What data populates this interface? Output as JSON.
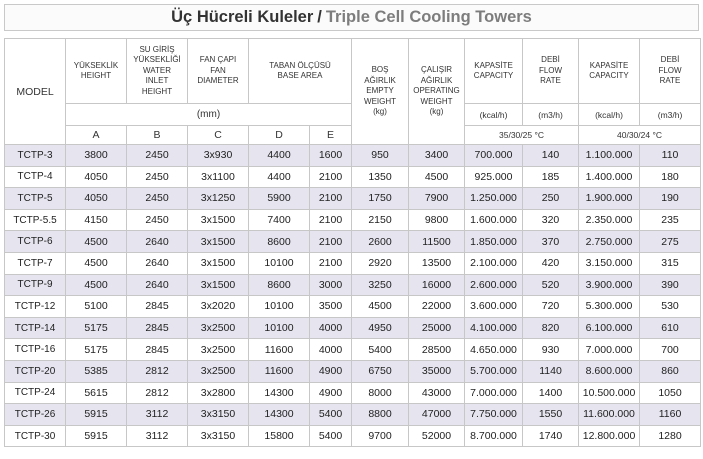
{
  "title": {
    "turkish": "Üç Hücreli Kuleler",
    "separator": "/",
    "english": "Triple Cell Cooling Towers"
  },
  "table": {
    "model_header": "MODEL",
    "col_height": [
      "YÜKSEKLİK",
      "HEIGHT"
    ],
    "col_inlet": [
      "SU GİRİŞ",
      "YÜKSEKLİĞİ",
      "WATER",
      "INLET",
      "HEIGHT"
    ],
    "col_fan": [
      "FAN ÇAPI",
      "FAN",
      "DIAMETER"
    ],
    "col_base": [
      "TABAN ÖLÇÜSÜ",
      "BASE AREA"
    ],
    "col_empty": [
      "BOŞ",
      "AĞIRLIK",
      "EMPTY",
      "WEIGHT",
      "(kg)"
    ],
    "col_operating": [
      "ÇALIŞIR",
      "AĞIRLIK",
      "OPERATING",
      "WEIGHT",
      "(kg)"
    ],
    "col_capacity1": [
      "KAPASİTE",
      "CAPACITY"
    ],
    "col_flow1": [
      "DEBİ",
      "FLOW",
      "RATE"
    ],
    "col_capacity2": [
      "KAPASİTE",
      "CAPACITY"
    ],
    "col_flow2": [
      "DEBİ",
      "FLOW",
      "RATE"
    ],
    "unit_mm": "(mm)",
    "unit_kcal": "(kcal/h)",
    "unit_m3h": "(m3/h)",
    "letters": [
      "A",
      "B",
      "C",
      "D",
      "E"
    ],
    "condition1": "35/30/25 °C",
    "condition2": "40/30/24 °C",
    "rows": [
      [
        "TCTP-3",
        "3800",
        "2450",
        "3x930",
        "4400",
        "1600",
        "950",
        "3400",
        "700.000",
        "140",
        "1.100.000",
        "110"
      ],
      [
        "TCTP-4",
        "4050",
        "2450",
        "3x1100",
        "4400",
        "2100",
        "1350",
        "4500",
        "925.000",
        "185",
        "1.400.000",
        "180"
      ],
      [
        "TCTP-5",
        "4050",
        "2450",
        "3x1250",
        "5900",
        "2100",
        "1750",
        "7900",
        "1.250.000",
        "250",
        "1.900.000",
        "190"
      ],
      [
        "TCTP-5.5",
        "4150",
        "2450",
        "3x1500",
        "7400",
        "2100",
        "2150",
        "9800",
        "1.600.000",
        "320",
        "2.350.000",
        "235"
      ],
      [
        "TCTP-6",
        "4500",
        "2640",
        "3x1500",
        "8600",
        "2100",
        "2600",
        "11500",
        "1.850.000",
        "370",
        "2.750.000",
        "275"
      ],
      [
        "TCTP-7",
        "4500",
        "2640",
        "3x1500",
        "10100",
        "2100",
        "2920",
        "13500",
        "2.100.000",
        "420",
        "3.150.000",
        "315"
      ],
      [
        "TCTP-9",
        "4500",
        "2640",
        "3x1500",
        "8600",
        "3000",
        "3250",
        "16000",
        "2.600.000",
        "520",
        "3.900.000",
        "390"
      ],
      [
        "TCTP-12",
        "5100",
        "2845",
        "3x2020",
        "10100",
        "3500",
        "4500",
        "22000",
        "3.600.000",
        "720",
        "5.300.000",
        "530"
      ],
      [
        "TCTP-14",
        "5175",
        "2845",
        "3x2500",
        "10100",
        "4000",
        "4950",
        "25000",
        "4.100.000",
        "820",
        "6.100.000",
        "610"
      ],
      [
        "TCTP-16",
        "5175",
        "2845",
        "3x2500",
        "11600",
        "4000",
        "5400",
        "28500",
        "4.650.000",
        "930",
        "7.000.000",
        "700"
      ],
      [
        "TCTP-20",
        "5385",
        "2812",
        "3x2500",
        "11600",
        "4900",
        "6750",
        "35000",
        "5.700.000",
        "1140",
        "8.600.000",
        "860"
      ],
      [
        "TCTP-24",
        "5615",
        "2812",
        "3x2800",
        "14300",
        "4900",
        "8000",
        "43000",
        "7.000.000",
        "1400",
        "10.500.000",
        "1050"
      ],
      [
        "TCTP-26",
        "5915",
        "3112",
        "3x3150",
        "14300",
        "5400",
        "8800",
        "47000",
        "7.750.000",
        "1550",
        "11.600.000",
        "1160"
      ],
      [
        "TCTP-30",
        "5915",
        "3112",
        "3x3150",
        "15800",
        "5400",
        "9700",
        "52000",
        "8.700.000",
        "1740",
        "12.800.000",
        "1280"
      ]
    ]
  },
  "colors": {
    "row_shade": "#e6e4ef",
    "border": "#c7c7c7",
    "title_english": "#7d7d7d"
  }
}
